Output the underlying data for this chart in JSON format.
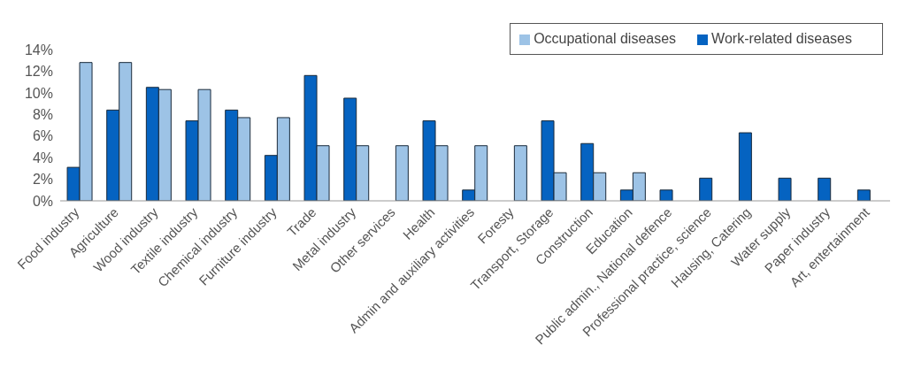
{
  "chart_data": {
    "type": "bar",
    "categories": [
      "Food industry",
      "Agriculture",
      "Wood industry",
      "Textile industry",
      "Chemical industry",
      "Furniture industry",
      "Trade",
      "Metal industry",
      "Other services",
      "Health",
      "Admin and auxiliary activities",
      "Foresty",
      "Transport, Storage",
      "Construction",
      "Education",
      "Public admin., National defence",
      "Professional practice, science",
      "Hausing, Catering",
      "Water supply",
      "Paper industry",
      "Art, entertainment"
    ],
    "series": [
      {
        "name": "Work-related diseases",
        "color": "#0563c1",
        "values": [
          3.1,
          8.4,
          10.5,
          7.4,
          8.4,
          4.2,
          11.6,
          9.5,
          null,
          7.4,
          1.0,
          null,
          7.4,
          5.3,
          1.0,
          1.0,
          2.1,
          6.3,
          2.1,
          2.1,
          1.0
        ]
      },
      {
        "name": "Occupational diseases",
        "color": "#9dc3e6",
        "values": [
          12.8,
          12.8,
          10.3,
          10.3,
          7.7,
          7.7,
          5.1,
          5.1,
          5.1,
          5.1,
          5.1,
          5.1,
          2.6,
          2.6,
          2.6,
          null,
          null,
          null,
          null,
          null,
          null
        ]
      }
    ],
    "ylim": [
      0,
      14
    ],
    "yticks": [
      {
        "value": 0,
        "label": "0%"
      },
      {
        "value": 2,
        "label": "2%"
      },
      {
        "value": 4,
        "label": "4%"
      },
      {
        "value": 6,
        "label": "6%"
      },
      {
        "value": 8,
        "label": "8%"
      },
      {
        "value": 10,
        "label": "10%"
      },
      {
        "value": 12,
        "label": "12%"
      },
      {
        "value": 14,
        "label": "14%"
      }
    ],
    "grid": false,
    "legend": "top right"
  }
}
